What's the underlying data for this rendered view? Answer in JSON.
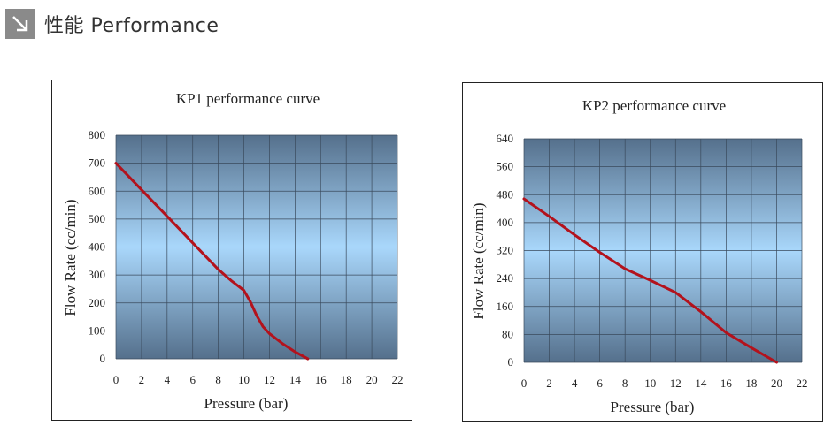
{
  "header": {
    "title": "性能 Performance",
    "icon": "arrow-down-right-icon",
    "icon_color": "#8a8a8a"
  },
  "colors": {
    "curve": "#b3121c",
    "plot_top": "#55708c",
    "plot_mid": "#a9d7fb",
    "plot_bottom": "#55708c",
    "grid": "#3a4a5c"
  },
  "chart_data": [
    {
      "type": "line",
      "title": "KP1 performance curve",
      "xlabel": "Pressure (bar)",
      "ylabel": "Flow Rate (cc/min)",
      "xlim": [
        0,
        22
      ],
      "ylim": [
        0,
        800
      ],
      "xticks": [
        0,
        2,
        4,
        6,
        8,
        10,
        12,
        14,
        16,
        18,
        20,
        22
      ],
      "yticks": [
        0,
        100,
        200,
        300,
        400,
        500,
        600,
        700,
        800
      ],
      "grid": true,
      "series": [
        {
          "x": [
            0,
            2,
            4,
            6,
            8,
            9,
            10,
            10.5,
            11,
            11.5,
            12,
            13,
            14,
            15
          ],
          "y": [
            700,
            605,
            510,
            415,
            320,
            280,
            245,
            205,
            155,
            115,
            90,
            55,
            25,
            0
          ]
        }
      ]
    },
    {
      "type": "line",
      "title": "KP2 performance curve",
      "xlabel": "Pressure (bar)",
      "ylabel": "Flow Rate (cc/min)",
      "xlim": [
        0,
        22
      ],
      "ylim": [
        0,
        640
      ],
      "xticks": [
        0,
        2,
        4,
        6,
        8,
        10,
        12,
        14,
        16,
        18,
        20,
        22
      ],
      "yticks": [
        0,
        80,
        160,
        240,
        320,
        400,
        480,
        560,
        640
      ],
      "grid": true,
      "series": [
        {
          "x": [
            0,
            2,
            4,
            6,
            8,
            10,
            12,
            14,
            16,
            18,
            20
          ],
          "y": [
            468,
            418,
            365,
            315,
            268,
            235,
            200,
            145,
            85,
            42,
            0
          ]
        }
      ]
    }
  ]
}
